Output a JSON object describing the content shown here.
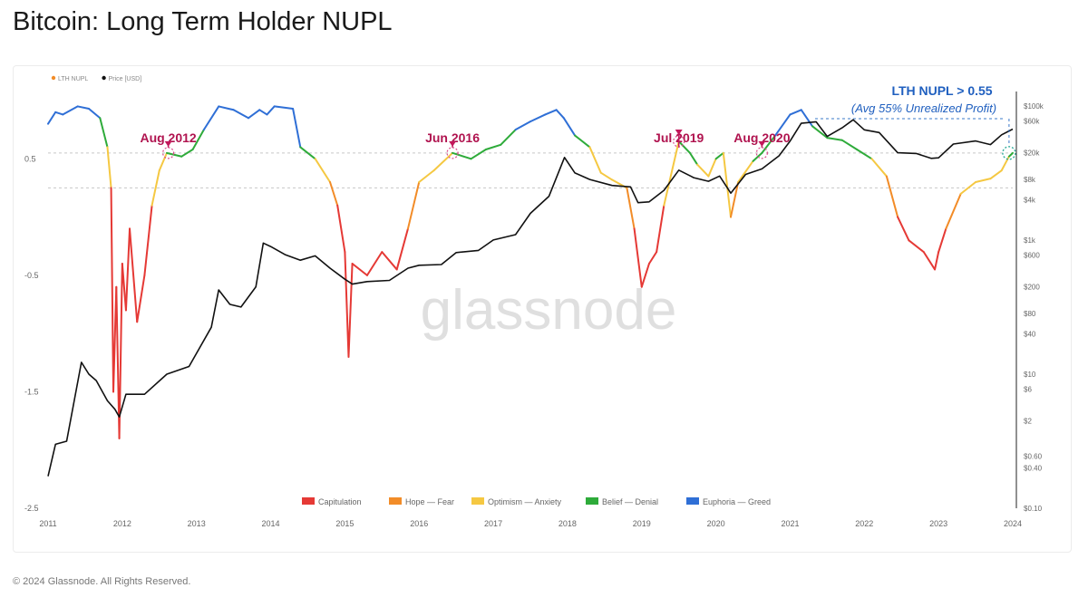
{
  "page": {
    "title": "Bitcoin: Long Term Holder NUPL",
    "copyright": "© 2024 Glassnode. All Rights Reserved.",
    "watermark": "glassnode"
  },
  "chart_data": {
    "type": "line",
    "legend_top": [
      {
        "label": "LTH NUPL",
        "color": "#f28c28"
      },
      {
        "label": "Price [USD]",
        "color": "#111111"
      }
    ],
    "legend_bottom": [
      {
        "label": "Capitulation",
        "color": "#e53935"
      },
      {
        "label": "Hope — Fear",
        "color": "#f28c28"
      },
      {
        "label": "Optimism — Anxiety",
        "color": "#f5c842"
      },
      {
        "label": "Belief — Denial",
        "color": "#2eab3a"
      },
      {
        "label": "Euphoria — Greed",
        "color": "#2f6fd6"
      }
    ],
    "x_ticks": [
      "2011",
      "2012",
      "2013",
      "2014",
      "2015",
      "2016",
      "2017",
      "2018",
      "2019",
      "2020",
      "2021",
      "2022",
      "2023",
      "2024"
    ],
    "x_range": [
      2011,
      2024
    ],
    "y_left_ticks": [
      {
        "label": "0.5",
        "value": 0.5
      },
      {
        "label": "-0.5",
        "value": -0.5
      },
      {
        "label": "-1.5",
        "value": -1.5
      },
      {
        "label": "-2.5",
        "value": -2.5
      }
    ],
    "y_left_range": [
      -2.5,
      1.0
    ],
    "y_right_ticks": [
      {
        "label": "$100k",
        "value": 100000
      },
      {
        "label": "$60k",
        "value": 60000
      },
      {
        "label": "$20k",
        "value": 20000
      },
      {
        "label": "$8k",
        "value": 8000
      },
      {
        "label": "$4k",
        "value": 4000
      },
      {
        "label": "$1k",
        "value": 1000
      },
      {
        "label": "$600",
        "value": 600
      },
      {
        "label": "$200",
        "value": 200
      },
      {
        "label": "$80",
        "value": 80
      },
      {
        "label": "$40",
        "value": 40
      },
      {
        "label": "$10",
        "value": 10
      },
      {
        "label": "$6",
        "value": 6
      },
      {
        "label": "$2",
        "value": 2
      },
      {
        "label": "$0.60",
        "value": 0.6
      },
      {
        "label": "$0.40",
        "value": 0.4
      },
      {
        "label": "$0.10",
        "value": 0.1
      }
    ],
    "y_right_scale": "log",
    "y_right_range": [
      0.1,
      120000
    ],
    "reference_lines": [
      0.55,
      0.25
    ],
    "annotations": [
      {
        "label": "Aug 2012",
        "x": 2012.62,
        "y": 0.55
      },
      {
        "label": "Jun 2016",
        "x": 2016.45,
        "y": 0.55
      },
      {
        "label": "Jul 2019",
        "x": 2019.5,
        "y": 0.65
      },
      {
        "label": "Aug 2020",
        "x": 2020.62,
        "y": 0.55
      }
    ],
    "callout": {
      "title": "LTH NUPL > 0.55",
      "subtitle": "(Avg 55% Unrealized Profit)",
      "x": 2023.95,
      "y": 0.55
    },
    "nupl_series": [
      [
        2011.0,
        0.8
      ],
      [
        2011.1,
        0.9
      ],
      [
        2011.2,
        0.88
      ],
      [
        2011.4,
        0.95
      ],
      [
        2011.55,
        0.93
      ],
      [
        2011.7,
        0.85
      ],
      [
        2011.8,
        0.6
      ],
      [
        2011.85,
        0.25
      ],
      [
        2011.88,
        -1.5
      ],
      [
        2011.92,
        -0.6
      ],
      [
        2011.96,
        -1.9
      ],
      [
        2012.0,
        -0.4
      ],
      [
        2012.05,
        -0.8
      ],
      [
        2012.1,
        -0.1
      ],
      [
        2012.2,
        -0.9
      ],
      [
        2012.3,
        -0.5
      ],
      [
        2012.4,
        0.1
      ],
      [
        2012.5,
        0.4
      ],
      [
        2012.6,
        0.55
      ],
      [
        2012.8,
        0.52
      ],
      [
        2012.95,
        0.58
      ],
      [
        2013.1,
        0.75
      ],
      [
        2013.3,
        0.95
      ],
      [
        2013.5,
        0.92
      ],
      [
        2013.7,
        0.85
      ],
      [
        2013.85,
        0.92
      ],
      [
        2013.95,
        0.88
      ],
      [
        2014.05,
        0.95
      ],
      [
        2014.3,
        0.93
      ],
      [
        2014.4,
        0.6
      ],
      [
        2014.6,
        0.5
      ],
      [
        2014.8,
        0.3
      ],
      [
        2014.9,
        0.1
      ],
      [
        2015.0,
        -0.3
      ],
      [
        2015.05,
        -1.2
      ],
      [
        2015.1,
        -0.4
      ],
      [
        2015.3,
        -0.5
      ],
      [
        2015.5,
        -0.3
      ],
      [
        2015.7,
        -0.45
      ],
      [
        2015.85,
        -0.1
      ],
      [
        2016.0,
        0.3
      ],
      [
        2016.2,
        0.4
      ],
      [
        2016.45,
        0.55
      ],
      [
        2016.7,
        0.5
      ],
      [
        2016.9,
        0.58
      ],
      [
        2017.1,
        0.62
      ],
      [
        2017.3,
        0.75
      ],
      [
        2017.5,
        0.82
      ],
      [
        2017.7,
        0.88
      ],
      [
        2017.85,
        0.92
      ],
      [
        2017.95,
        0.85
      ],
      [
        2018.1,
        0.7
      ],
      [
        2018.3,
        0.6
      ],
      [
        2018.45,
        0.38
      ],
      [
        2018.6,
        0.32
      ],
      [
        2018.8,
        0.25
      ],
      [
        2018.9,
        -0.1
      ],
      [
        2019.0,
        -0.6
      ],
      [
        2019.1,
        -0.4
      ],
      [
        2019.2,
        -0.3
      ],
      [
        2019.3,
        0.1
      ],
      [
        2019.5,
        0.65
      ],
      [
        2019.65,
        0.55
      ],
      [
        2019.75,
        0.45
      ],
      [
        2019.9,
        0.35
      ],
      [
        2020.0,
        0.5
      ],
      [
        2020.1,
        0.55
      ],
      [
        2020.2,
        0.0
      ],
      [
        2020.3,
        0.3
      ],
      [
        2020.5,
        0.48
      ],
      [
        2020.62,
        0.55
      ],
      [
        2020.8,
        0.7
      ],
      [
        2021.0,
        0.88
      ],
      [
        2021.15,
        0.92
      ],
      [
        2021.3,
        0.78
      ],
      [
        2021.5,
        0.68
      ],
      [
        2021.7,
        0.66
      ],
      [
        2021.9,
        0.58
      ],
      [
        2022.1,
        0.5
      ],
      [
        2022.3,
        0.35
      ],
      [
        2022.45,
        0.0
      ],
      [
        2022.6,
        -0.2
      ],
      [
        2022.8,
        -0.3
      ],
      [
        2022.95,
        -0.45
      ],
      [
        2023.0,
        -0.3
      ],
      [
        2023.1,
        -0.1
      ],
      [
        2023.3,
        0.2
      ],
      [
        2023.5,
        0.3
      ],
      [
        2023.7,
        0.33
      ],
      [
        2023.85,
        0.4
      ],
      [
        2023.95,
        0.52
      ],
      [
        2024.0,
        0.55
      ]
    ],
    "price_series": [
      [
        2011.0,
        0.3
      ],
      [
        2011.1,
        0.9
      ],
      [
        2011.25,
        1.0
      ],
      [
        2011.45,
        15
      ],
      [
        2011.55,
        10
      ],
      [
        2011.65,
        8
      ],
      [
        2011.8,
        4
      ],
      [
        2011.9,
        3
      ],
      [
        2011.96,
        2.3
      ],
      [
        2012.05,
        5
      ],
      [
        2012.3,
        5
      ],
      [
        2012.6,
        10
      ],
      [
        2012.9,
        13
      ],
      [
        2013.2,
        50
      ],
      [
        2013.3,
        180
      ],
      [
        2013.45,
        110
      ],
      [
        2013.6,
        100
      ],
      [
        2013.8,
        200
      ],
      [
        2013.9,
        900
      ],
      [
        2014.0,
        800
      ],
      [
        2014.2,
        600
      ],
      [
        2014.4,
        500
      ],
      [
        2014.6,
        580
      ],
      [
        2014.8,
        380
      ],
      [
        2015.0,
        260
      ],
      [
        2015.1,
        220
      ],
      [
        2015.3,
        240
      ],
      [
        2015.6,
        250
      ],
      [
        2015.85,
        380
      ],
      [
        2016.0,
        420
      ],
      [
        2016.3,
        430
      ],
      [
        2016.5,
        650
      ],
      [
        2016.8,
        700
      ],
      [
        2017.0,
        1000
      ],
      [
        2017.3,
        1200
      ],
      [
        2017.5,
        2500
      ],
      [
        2017.75,
        4500
      ],
      [
        2017.96,
        17000
      ],
      [
        2018.1,
        10000
      ],
      [
        2018.3,
        8000
      ],
      [
        2018.6,
        6500
      ],
      [
        2018.85,
        6200
      ],
      [
        2018.95,
        3600
      ],
      [
        2019.1,
        3700
      ],
      [
        2019.3,
        5500
      ],
      [
        2019.5,
        11000
      ],
      [
        2019.7,
        8500
      ],
      [
        2019.9,
        7500
      ],
      [
        2020.05,
        9000
      ],
      [
        2020.2,
        5000
      ],
      [
        2020.4,
        9500
      ],
      [
        2020.62,
        11500
      ],
      [
        2020.85,
        18000
      ],
      [
        2021.0,
        30000
      ],
      [
        2021.15,
        55000
      ],
      [
        2021.35,
        58000
      ],
      [
        2021.5,
        35000
      ],
      [
        2021.7,
        47000
      ],
      [
        2021.85,
        62000
      ],
      [
        2022.0,
        44000
      ],
      [
        2022.2,
        40000
      ],
      [
        2022.45,
        20000
      ],
      [
        2022.7,
        19500
      ],
      [
        2022.9,
        16500
      ],
      [
        2023.0,
        16800
      ],
      [
        2023.2,
        27000
      ],
      [
        2023.5,
        30000
      ],
      [
        2023.7,
        26500
      ],
      [
        2023.85,
        37000
      ],
      [
        2024.0,
        45000
      ]
    ]
  }
}
